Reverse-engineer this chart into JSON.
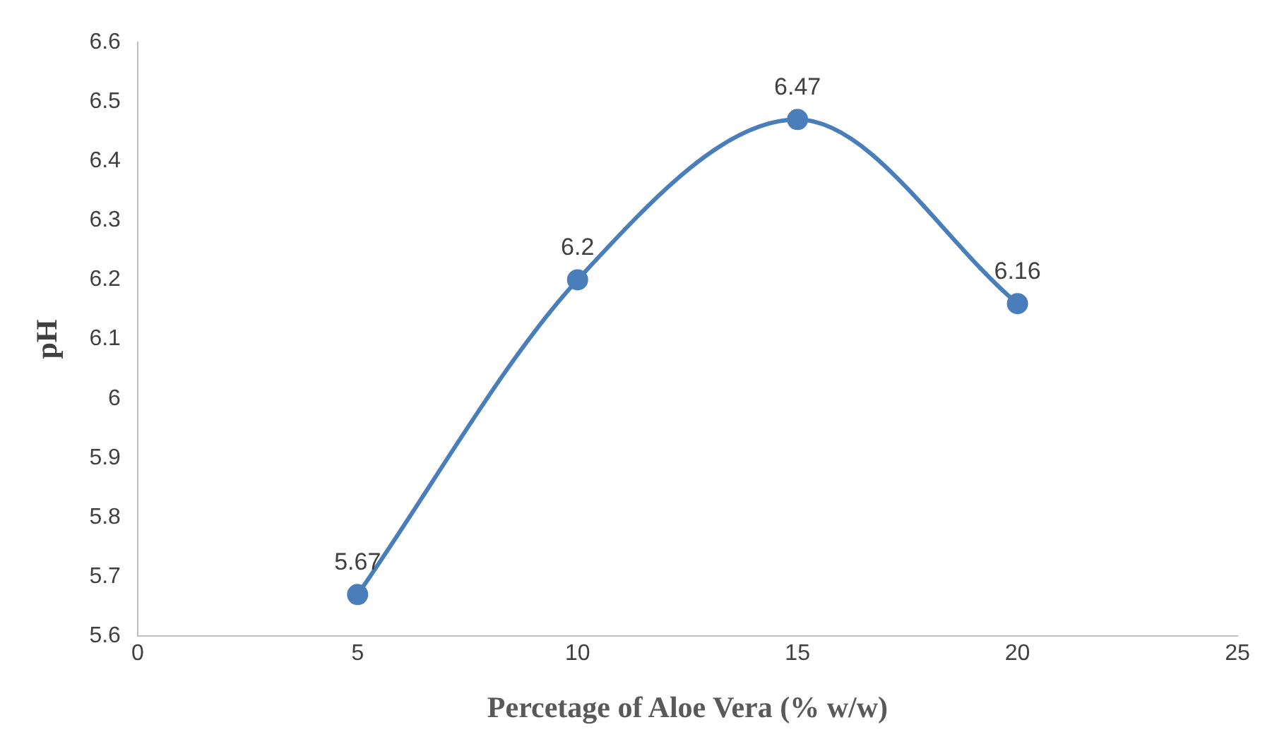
{
  "chart_data": {
    "type": "line",
    "xlabel": "Percetage of Aloe Vera (% w/w)",
    "ylabel": "pH",
    "x": [
      5,
      10,
      15,
      20
    ],
    "series": [
      {
        "color": "#4a7ebb",
        "values": [
          5.67,
          6.2,
          6.47,
          6.16
        ]
      }
    ],
    "xlim": [
      0,
      25
    ],
    "xticks": [
      0,
      5,
      10,
      15,
      20,
      25
    ],
    "ylim": [
      5.6,
      6.6
    ],
    "yticks": [
      5.6,
      5.7,
      5.8,
      5.9,
      6,
      6.1,
      6.2,
      6.3,
      6.4,
      6.5,
      6.6
    ],
    "grid": false,
    "legend": false,
    "marker": "circle",
    "line_style": "solid",
    "data_labels": true
  }
}
